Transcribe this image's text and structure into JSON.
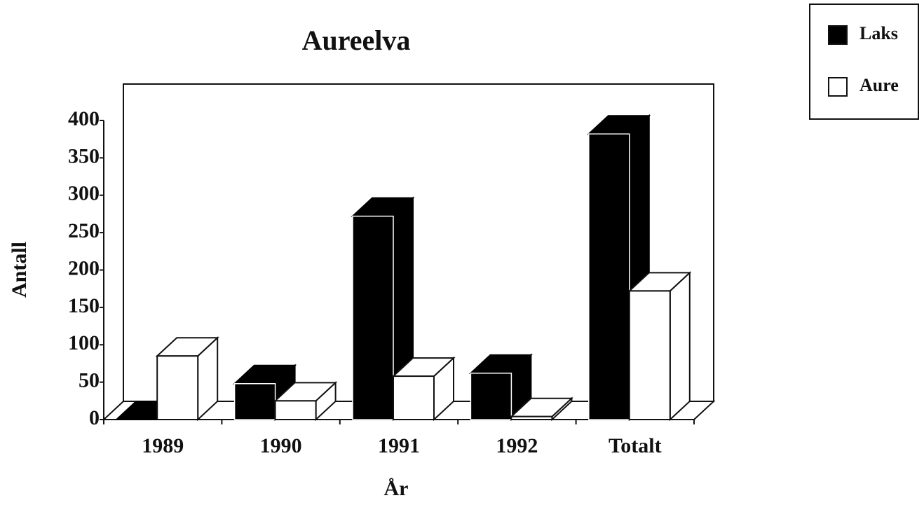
{
  "chart_data": {
    "type": "bar3d",
    "title": "Aureelva",
    "x_label": "År",
    "y_label": "Antall",
    "categories": [
      "1989",
      "1990",
      "1991",
      "1992",
      "Totalt"
    ],
    "series": [
      {
        "name": "Laks",
        "color": "#000000",
        "values": [
          0,
          48,
          272,
          62,
          382
        ]
      },
      {
        "name": "Aure",
        "color": "#ffffff",
        "values": [
          85,
          25,
          58,
          4,
          172
        ]
      }
    ],
    "ylim": [
      0,
      400
    ],
    "yticks": [
      0,
      50,
      100,
      150,
      200,
      250,
      300,
      350,
      400
    ],
    "legend": "top-right"
  }
}
